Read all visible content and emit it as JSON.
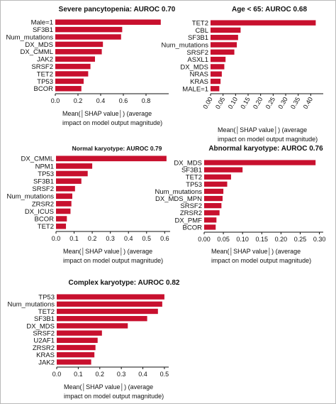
{
  "bar_color": "#c8102e",
  "xlabel_line1": "Mean(│SHAP value│) (average",
  "xlabel_line2": "impact on model output magnitude)",
  "chart_data": [
    {
      "type": "bar",
      "title": "Severe pancytopenia: AUROC 0.70",
      "categories": [
        "Male=1",
        "SF3B1",
        "Num_mutations",
        "DX_MDS",
        "DX_CMML",
        "JAK2",
        "SRSF2",
        "TET2",
        "TP53",
        "BCOR"
      ],
      "values": [
        0.93,
        0.59,
        0.58,
        0.42,
        0.41,
        0.35,
        0.31,
        0.29,
        0.25,
        0.23
      ],
      "xlim": [
        0,
        1.0
      ],
      "xticks": [
        "0.0",
        "0.2",
        "0.4",
        "0.6",
        "0.8"
      ],
      "xtick_values": [
        0,
        0.2,
        0.4,
        0.6,
        0.8
      ],
      "rotated_ticks": false
    },
    {
      "type": "bar",
      "title": "Age < 65: AUROC 0.68",
      "categories": [
        "TET2",
        "CBL",
        "SF3B1",
        "Num_mutations",
        "SRSF2",
        "ASXL1",
        "DX_MDS",
        "NRAS",
        "KRAS",
        "MALE=1"
      ],
      "values": [
        0.42,
        0.12,
        0.11,
        0.105,
        0.095,
        0.06,
        0.055,
        0.045,
        0.04,
        0.035
      ],
      "xlim": [
        0,
        0.45
      ],
      "xticks": [
        "0.00",
        "0.05",
        "0.10",
        "0.15",
        "0.20",
        "0.25",
        "0.30",
        "0.35",
        "0.40"
      ],
      "xtick_values": [
        0,
        0.05,
        0.1,
        0.15,
        0.2,
        0.25,
        0.3,
        0.35,
        0.4
      ],
      "rotated_ticks": true
    },
    {
      "type": "bar",
      "title": "Normal karyotype: AUROC 0.79",
      "categories": [
        "DX_CMML",
        "NPM1",
        "TP53",
        "SF3B1",
        "SRSF2",
        "Num_mutations",
        "ZRSR2",
        "DX_ICUS",
        "BCOR",
        "TET2"
      ],
      "values": [
        0.61,
        0.2,
        0.175,
        0.14,
        0.105,
        0.09,
        0.085,
        0.08,
        0.06,
        0.055
      ],
      "xlim": [
        0,
        0.63
      ],
      "xticks": [
        "0.0",
        "0.1",
        "0.2",
        "0.3",
        "0.4",
        "0.5",
        "0.6"
      ],
      "xtick_values": [
        0,
        0.1,
        0.2,
        0.3,
        0.4,
        0.5,
        0.6
      ],
      "rotated_ticks": false
    },
    {
      "type": "bar",
      "title": "Abnormal karyotype: AUROC 0.76",
      "categories": [
        "DX_MDS",
        "SF3B1",
        "TET2",
        "TP53",
        "Num_mutations",
        "DX_MDS_MPN",
        "SRSF2",
        "ZRSR2",
        "DX_PMF",
        "BCOR"
      ],
      "values": [
        0.29,
        0.1,
        0.07,
        0.06,
        0.05,
        0.048,
        0.045,
        0.04,
        0.032,
        0.03
      ],
      "xlim": [
        0,
        0.31
      ],
      "xticks": [
        "0.00",
        "0.05",
        "0.10",
        "0.15",
        "0.20",
        "0.25",
        "0.30"
      ],
      "xtick_values": [
        0,
        0.05,
        0.1,
        0.15,
        0.2,
        0.25,
        0.3
      ],
      "rotated_ticks": false
    },
    {
      "type": "bar",
      "title": "Complex karyotype: AUROC 0.82",
      "categories": [
        "TP53",
        "Num_mutations",
        "TET2",
        "SF3B1",
        "DX_MDS",
        "SRSF2",
        "U2AF1",
        "ZRSR2",
        "KRAS",
        "JAK2"
      ],
      "values": [
        0.5,
        0.49,
        0.47,
        0.42,
        0.33,
        0.21,
        0.19,
        0.18,
        0.175,
        0.16
      ],
      "xlim": [
        0,
        0.52
      ],
      "xticks": [
        "0.0",
        "0.1",
        "0.2",
        "0.3",
        "0.4",
        "0.5"
      ],
      "xtick_values": [
        0,
        0.1,
        0.2,
        0.3,
        0.4,
        0.5
      ],
      "rotated_ticks": false
    }
  ]
}
